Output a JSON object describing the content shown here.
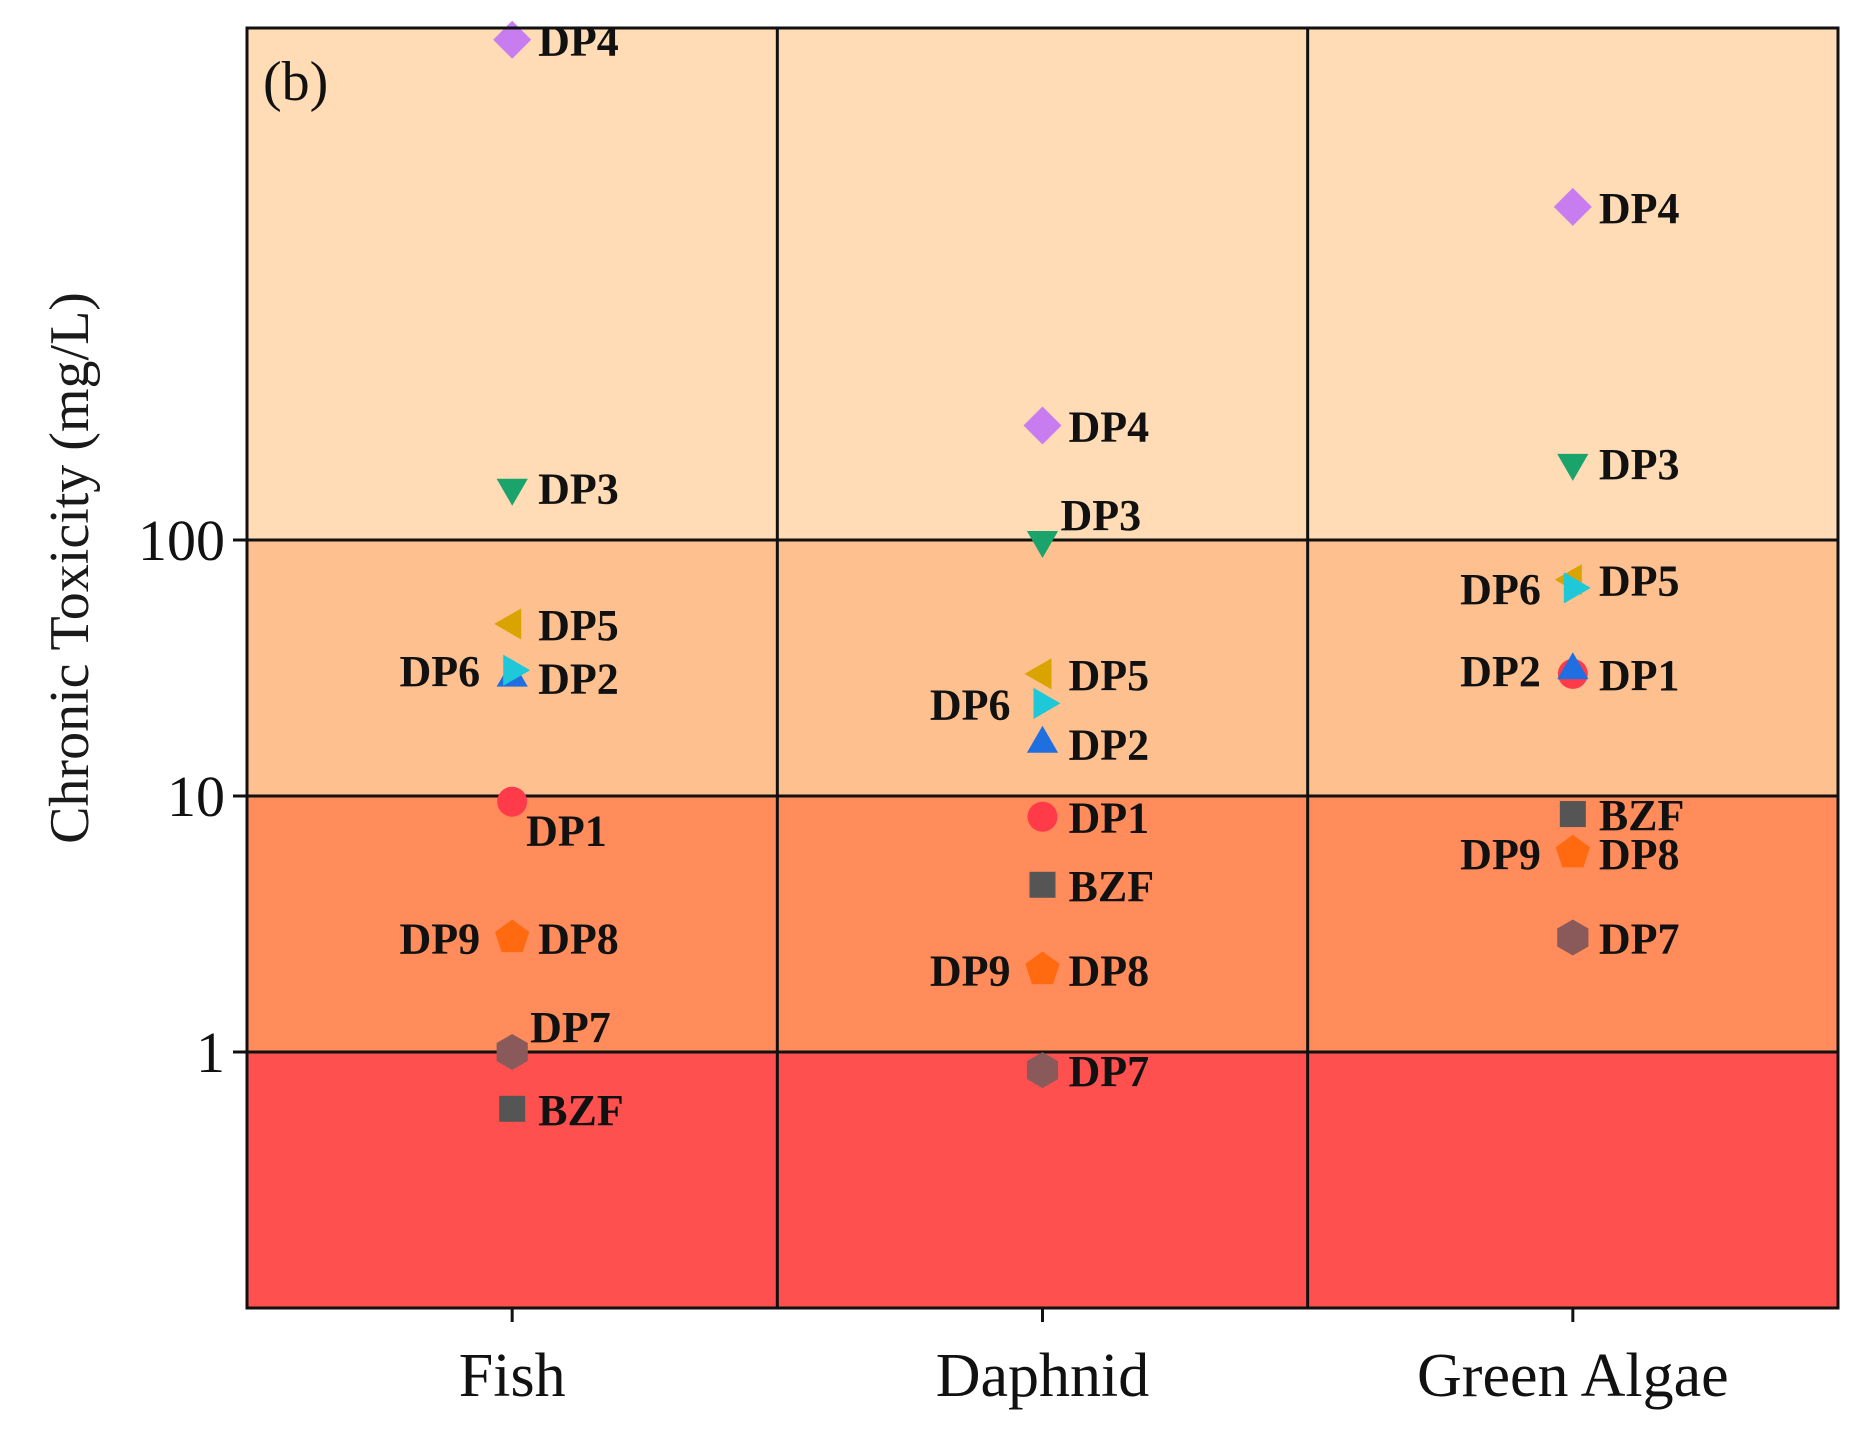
{
  "chart_data": {
    "type": "scatter",
    "panel_label": "(b)",
    "title": "",
    "xlabel": "",
    "ylabel": "Chronic Toxicity (mg/L)",
    "y_scale": "log",
    "ylim": [
      0.1,
      10000
    ],
    "y_ticks": [
      {
        "value": 1,
        "label": "1"
      },
      {
        "value": 10,
        "label": "10"
      },
      {
        "value": 100,
        "label": "100"
      }
    ],
    "categories": [
      "Fish",
      "Daphnid",
      "Green Algae"
    ],
    "background_bands": [
      {
        "from": 0.1,
        "to": 1,
        "color": "#ff5050"
      },
      {
        "from": 1,
        "to": 10,
        "color": "#ff8c5a"
      },
      {
        "from": 10,
        "to": 100,
        "color": "#ffc08f"
      },
      {
        "from": 100,
        "to": 10000,
        "color": "#ffdcb5"
      }
    ],
    "series": [
      {
        "name": "BZF",
        "marker": "square",
        "color": "#555555",
        "values": [
          0.6,
          4.5,
          8.5
        ],
        "label_side": [
          "right",
          "right",
          "right"
        ]
      },
      {
        "name": "DP1",
        "marker": "circle",
        "color": "#ff3b4a",
        "values": [
          9.5,
          8.3,
          30
        ],
        "label_side": [
          "right-below",
          "right",
          "right"
        ]
      },
      {
        "name": "DP2",
        "marker": "triangle-up",
        "color": "#1f6fe0",
        "values": [
          29,
          16,
          31
        ],
        "label_side": [
          "right",
          "right",
          "left"
        ]
      },
      {
        "name": "DP3",
        "marker": "triangle-down",
        "color": "#1aa36a",
        "values": [
          160,
          100,
          200
        ],
        "label_side": [
          "right",
          "right-above",
          "right"
        ]
      },
      {
        "name": "DP4",
        "marker": "diamond",
        "color": "#c77cf0",
        "values": [
          9000,
          280,
          2000
        ],
        "label_side": [
          "right",
          "right",
          "right"
        ]
      },
      {
        "name": "DP5",
        "marker": "triangle-left",
        "color": "#d9a300",
        "values": [
          47,
          30,
          70
        ],
        "label_side": [
          "right",
          "right",
          "right"
        ]
      },
      {
        "name": "DP6",
        "marker": "triangle-right",
        "color": "#1ec8d8",
        "values": [
          31,
          23,
          65
        ],
        "label_side": [
          "left",
          "left",
          "left"
        ]
      },
      {
        "name": "DP7",
        "marker": "hexagon",
        "color": "#8a5a5a",
        "values": [
          1.0,
          0.85,
          2.8
        ],
        "label_side": [
          "right-above",
          "right",
          "right"
        ]
      },
      {
        "name": "DP8",
        "marker": "pentagon",
        "color": "#ff6a10",
        "values": [
          2.8,
          2.1,
          6.0
        ],
        "label_side": [
          "right",
          "right",
          "right"
        ]
      },
      {
        "name": "DP9",
        "marker": "none",
        "color": "#111111",
        "values": [
          2.8,
          2.1,
          6.0
        ],
        "label_side": [
          "left",
          "left",
          "left"
        ]
      }
    ],
    "grid": false,
    "legend": "none"
  }
}
